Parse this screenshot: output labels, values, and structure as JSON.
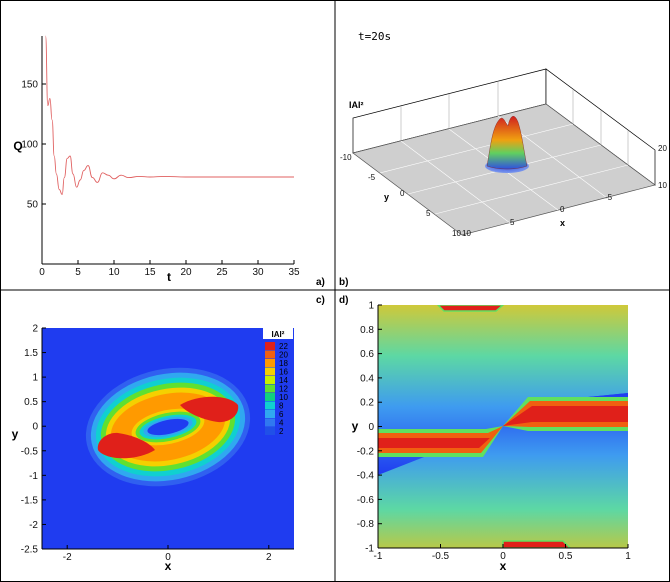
{
  "panel_labels": [
    "a)",
    "b)",
    "c)",
    "d)"
  ],
  "chart_data": [
    {
      "panel": "a",
      "type": "line",
      "xlabel": "t",
      "ylabel": "Q",
      "xlim": [
        0,
        35
      ],
      "ylim": [
        0,
        190
      ],
      "xticks": [
        0,
        5,
        10,
        15,
        20,
        25,
        30,
        35
      ],
      "yticks": [
        50,
        100,
        150
      ],
      "line_color": "#e06060",
      "x": [
        0.5,
        0.8,
        1.1,
        1.4,
        1.7,
        2.0,
        2.4,
        2.8,
        3.1,
        3.5,
        3.9,
        4.3,
        4.8,
        5.3,
        5.8,
        6.4,
        7.0,
        7.7,
        8.4,
        9.2,
        10.0,
        11.0,
        12.0,
        13.5,
        15.0,
        17.0,
        20.0,
        25.0,
        30.0,
        35.0
      ],
      "y": [
        190,
        132,
        138,
        120,
        90,
        75,
        62,
        58,
        72,
        88,
        90,
        75,
        64,
        70,
        78,
        82,
        72,
        68,
        76,
        74,
        71,
        74,
        72,
        73,
        72.5,
        73,
        72.5,
        72.5,
        72.5,
        72.5
      ]
    },
    {
      "panel": "b",
      "type": "surface3d",
      "annotation": "t=20s",
      "zlabel": "IAI²",
      "xlabel": "x",
      "ylabel": "y",
      "xticks": [
        -5,
        0,
        5,
        10
      ],
      "yticks": [
        -10,
        -5,
        0,
        5,
        10
      ],
      "zticks": [
        10,
        20
      ],
      "surface_color": "#cfcfcf"
    },
    {
      "panel": "c",
      "type": "heatmap",
      "xlabel": "x",
      "ylabel": "y",
      "xlim": [
        -2.5,
        2.5
      ],
      "ylim": [
        -2.5,
        2
      ],
      "xticks": [
        -2,
        0,
        2
      ],
      "yticks": [
        -2.5,
        -2,
        -1.5,
        -1,
        -0.5,
        0,
        0.5,
        1,
        1.5,
        2
      ],
      "legend_title": "IAI²",
      "levels": [
        22,
        20,
        18,
        16,
        14,
        12,
        10,
        8,
        6,
        4,
        2
      ],
      "level_colors": [
        "#e0201a",
        "#f06010",
        "#ff9a00",
        "#f5d000",
        "#c8f000",
        "#60e030",
        "#10d080",
        "#10d0d0",
        "#30a8f0",
        "#3078f0",
        "#2050e8"
      ],
      "background": "#1f3cf0"
    },
    {
      "panel": "d",
      "type": "heatmap",
      "xlabel": "x",
      "ylabel": "y",
      "xlim": [
        -1,
        1
      ],
      "ylim": [
        -1,
        1
      ],
      "xticks": [
        -1,
        -0.5,
        0,
        0.5,
        1
      ],
      "yticks": [
        -1,
        -0.8,
        -0.6,
        -0.4,
        -0.2,
        0,
        0.2,
        0.4,
        0.6,
        0.8,
        1
      ]
    }
  ]
}
